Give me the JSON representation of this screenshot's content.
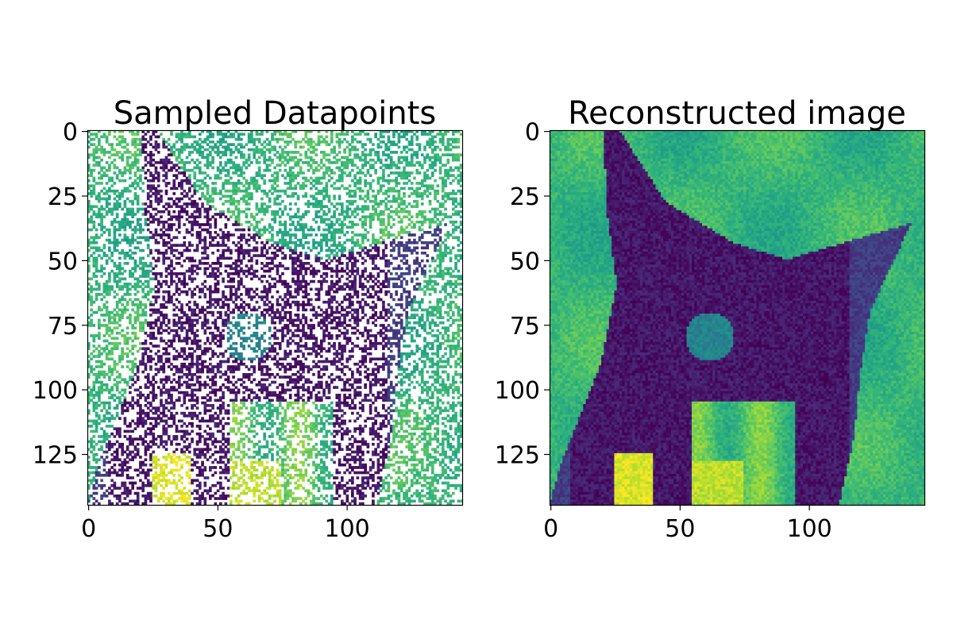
{
  "chart_data": [
    {
      "type": "heatmap",
      "title": "Sampled Datapoints",
      "image_size": [
        145,
        145
      ],
      "colormap": "viridis",
      "content": "sparse random pixel samples of a grayscale cat photograph; unsampled pixels are blank (white)",
      "sample_fraction": 0.45,
      "xlim": [
        0,
        145
      ],
      "ylim": [
        145,
        0
      ],
      "xticks": [
        0,
        50,
        100
      ],
      "yticks": [
        0,
        25,
        50,
        75,
        100,
        125
      ],
      "grid": false
    },
    {
      "type": "heatmap",
      "title": "Reconstructed image",
      "image_size": [
        145,
        145
      ],
      "colormap": "viridis",
      "content": "dense reconstruction of the cat photograph from the sampled pixels",
      "xlim": [
        0,
        145
      ],
      "ylim": [
        145,
        0
      ],
      "xticks": [
        0,
        50,
        100
      ],
      "yticks": [
        0,
        25,
        50,
        75,
        100,
        125
      ],
      "grid": false
    }
  ],
  "colors": {
    "viridis_dark": "#440154",
    "viridis_blue": "#3b528b",
    "viridis_teal": "#21918c",
    "viridis_green": "#5ec962",
    "viridis_yellow": "#fde725",
    "missing": "#ffffff",
    "axes": "#000000"
  }
}
